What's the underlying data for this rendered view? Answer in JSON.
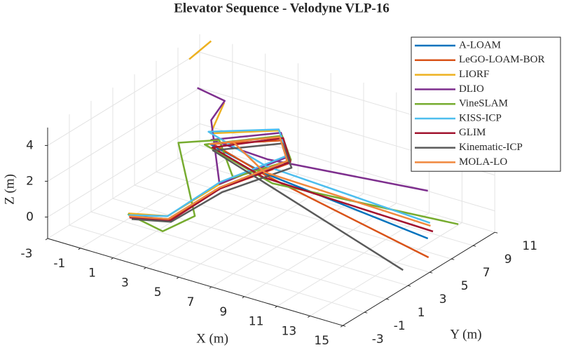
{
  "chart_data": {
    "type": "line3d",
    "title": "Elevator Sequence - Velodyne VLP-16",
    "xlabel": "X (m)",
    "ylabel": "Y (m)",
    "zlabel": "Z (m)",
    "xlim": [
      -3,
      15
    ],
    "ylim": [
      -3,
      11
    ],
    "zlim": [
      -1.2,
      5
    ],
    "xticks": [
      -3,
      -1,
      1,
      3,
      5,
      7,
      9,
      11,
      13,
      15
    ],
    "yticks": [
      -3,
      -1,
      1,
      3,
      5,
      7,
      9,
      11
    ],
    "zticks": [
      0,
      2,
      4
    ],
    "grid": true,
    "legend": "northeast",
    "series": [
      {
        "name": "A-LOAM",
        "color": "#0072bd",
        "x": [
          0.3,
          2.1,
          4.5,
          7.9,
          6.0,
          3.6,
          6.5,
          14.1
        ],
        "y": [
          -0.45,
          0.4,
          1.5,
          2.6,
          4.8,
          2.0,
          2.5,
          6.2
        ],
        "z": [
          0,
          0,
          2,
          4,
          4,
          4,
          3,
          0
        ]
      },
      {
        "name": "LeGO-LOAM-BOR",
        "color": "#d95319",
        "x": [
          0.4,
          2.2,
          4.6,
          8.0,
          6.2,
          3.7,
          6.8,
          15.4
        ],
        "y": [
          -0.5,
          0.3,
          1.4,
          2.5,
          4.7,
          2.1,
          2.3,
          4.3
        ],
        "z": [
          0,
          0,
          2,
          3.9,
          3.9,
          4,
          3,
          0
        ]
      },
      {
        "name": "LIORF",
        "color": "#edb120",
        "x": [
          0.2,
          2.0,
          4.4,
          7.8,
          5.9,
          3.5,
          3.8,
          null,
          1.0,
          2.0
        ],
        "y": [
          -0.4,
          0.5,
          1.6,
          2.7,
          4.9,
          2.2,
          3.0,
          null,
          4.0,
          4.5
        ],
        "z": [
          0.1,
          0.1,
          2.1,
          4.2,
          4.3,
          4.5,
          6.0,
          null,
          7.3,
          8.4
        ]
      },
      {
        "name": "DLIO",
        "color": "#7e2f8e",
        "x": [
          0.5,
          2.5,
          3.0,
          4.5,
          7.9,
          6.0,
          3.6,
          6.5,
          13.9
        ],
        "y": [
          5.5,
          5.0,
          3.0,
          1.5,
          2.7,
          4.9,
          2.1,
          2.9,
          6.5
        ],
        "z": [
          5,
          5,
          4.8,
          2.2,
          4.2,
          4.2,
          4.2,
          3.6,
          2.5
        ]
      },
      {
        "name": "VineSLAM",
        "color": "#77ac30",
        "x": [
          0.1,
          1.5,
          3.0,
          1.0,
          2.5,
          5.0,
          8.0,
          6.0,
          3.4,
          7.0,
          14.4
        ],
        "y": [
          -0.3,
          0.8,
          1.5,
          3.0,
          4.5,
          2.0,
          2.8,
          5.0,
          1.8,
          2.6,
          8.55
        ],
        "z": [
          0,
          -1,
          0,
          3,
          3,
          2.5,
          4,
          4,
          4,
          2.5,
          0
        ]
      },
      {
        "name": "KISS-ICP",
        "color": "#4dbeee",
        "x": [
          0.2,
          2.0,
          4.4,
          7.8,
          5.8,
          3.3,
          6.4,
          13.5
        ],
        "y": [
          -0.4,
          0.5,
          1.7,
          2.8,
          5.0,
          2.3,
          2.9,
          7.3
        ],
        "z": [
          0,
          0.1,
          2.2,
          4.2,
          4.3,
          4.5,
          3.2,
          0.3
        ]
      },
      {
        "name": "GLIM",
        "color": "#a2142f",
        "x": [
          0.4,
          2.3,
          4.6,
          8.1,
          6.2,
          3.8,
          6.6,
          13.84
        ],
        "y": [
          -0.6,
          0.3,
          1.4,
          2.6,
          4.8,
          1.9,
          2.4,
          7.06
        ],
        "z": [
          0,
          0,
          2,
          4,
          4,
          3.9,
          2.8,
          0
        ]
      },
      {
        "name": "Kinematic-ICP",
        "color": "#5a5a5a",
        "x": [
          0.6,
          2.4,
          4.8,
          8.3,
          6.3,
          3.9,
          6.8,
          15.2
        ],
        "y": [
          -0.7,
          0.2,
          1.3,
          2.4,
          4.6,
          1.8,
          2.1,
          2.25
        ],
        "z": [
          0,
          0,
          1.9,
          3.8,
          3.8,
          3.8,
          2.7,
          0
        ]
      },
      {
        "name": "MOLA-LO",
        "color": "#f0883e",
        "x": [
          0.3,
          2.1,
          4.5,
          7.9,
          6.0,
          3.6,
          5.0,
          6.5,
          13.6
        ],
        "y": [
          -0.5,
          0.4,
          1.5,
          2.6,
          4.8,
          2.0,
          2.0,
          2.6,
          7.2
        ],
        "z": [
          0,
          0,
          2,
          4,
          4,
          4,
          4.5,
          3,
          0.2
        ]
      }
    ]
  }
}
